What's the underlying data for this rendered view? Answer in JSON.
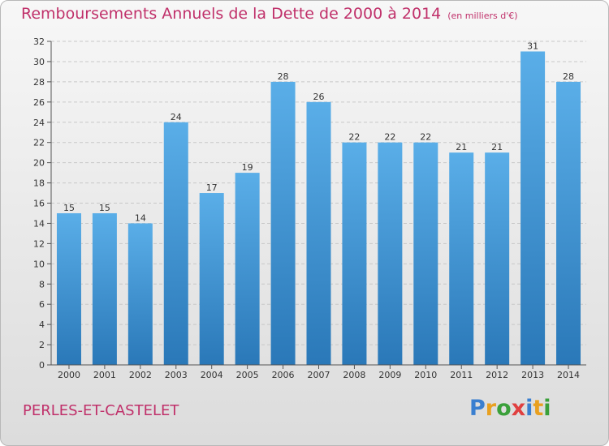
{
  "header": {
    "title": "Remboursements Annuels de la Dette de 2000 à 2014",
    "unit": "(en milliers d'€)"
  },
  "footer": {
    "commune": "PERLES-ET-CASTELET",
    "logo": "Proxiti"
  },
  "colors": {
    "title": "#c0306a",
    "bar_top": "#5aaee8",
    "bar_bottom": "#2a78b8",
    "grid": "#c8c8c8",
    "logo": [
      "#3a7fd0",
      "#e8a020",
      "#3aa03a",
      "#e04040",
      "#3a7fd0",
      "#e8a020",
      "#3aa03a"
    ]
  },
  "chart_data": {
    "type": "bar",
    "title": "Remboursements Annuels de la Dette de 2000 à 2014",
    "xlabel": "",
    "ylabel": "",
    "categories": [
      "2000",
      "2001",
      "2002",
      "2003",
      "2004",
      "2005",
      "2006",
      "2007",
      "2008",
      "2009",
      "2010",
      "2011",
      "2012",
      "2013",
      "2014"
    ],
    "values": [
      15,
      15,
      14,
      24,
      17,
      19,
      28,
      26,
      22,
      22,
      22,
      21,
      21,
      31,
      28
    ],
    "ylim": [
      0,
      32
    ],
    "yticks": [
      0,
      2,
      4,
      6,
      8,
      10,
      12,
      14,
      16,
      18,
      20,
      22,
      24,
      26,
      28,
      30,
      32
    ],
    "grid": true,
    "data_labels": true
  }
}
